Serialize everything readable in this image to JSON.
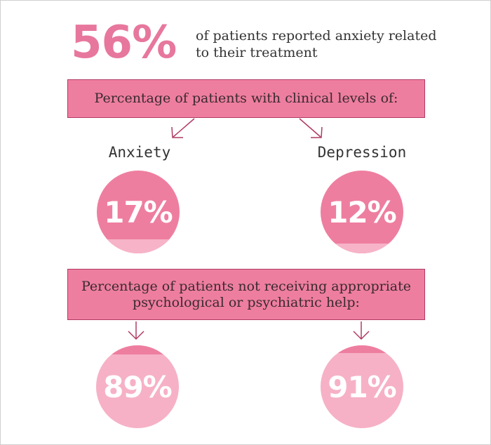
{
  "headline": {
    "value": "56%",
    "caption": "of patients reported anxiety related to their treatment"
  },
  "clinical": {
    "banner": "Percentage of patients with clinical levels of:",
    "items": [
      {
        "label": "Anxiety",
        "value": "17%",
        "fill_fraction": 0.17
      },
      {
        "label": "Depression",
        "value": "12%",
        "fill_fraction": 0.12
      }
    ]
  },
  "help": {
    "banner": "Percentage of patients not receiving appropriate psychological or psychiatric help:",
    "items": [
      {
        "value": "89%",
        "fill_fraction": 0.89
      },
      {
        "value": "91%",
        "fill_fraction": 0.91
      }
    ]
  },
  "colors": {
    "pink_dark": "#ee7ea0",
    "pink_light": "#f6b1c6",
    "headline": "#e7779d",
    "border": "#b03a64"
  }
}
